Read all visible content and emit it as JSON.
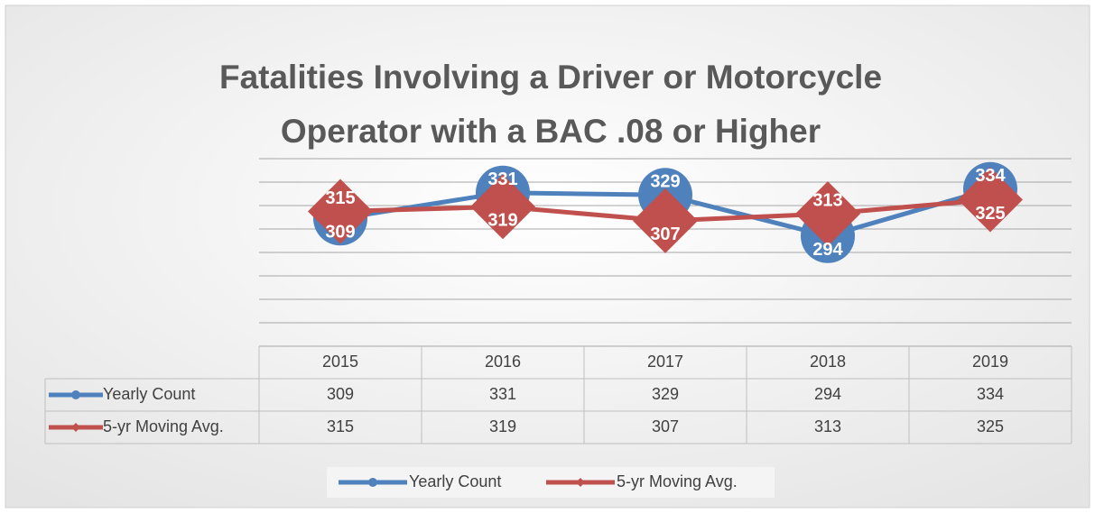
{
  "chart_data": {
    "type": "line",
    "title": "Fatalities Involving a Driver or Motorcycle Operator with a BAC .08 or Higher",
    "categories": [
      "2015",
      "2016",
      "2017",
      "2018",
      "2019"
    ],
    "series": [
      {
        "name": "Yearly Count",
        "color": "#4f81bd",
        "marker": "circle",
        "values": [
          309,
          331,
          329,
          294,
          334
        ]
      },
      {
        "name": "5-yr Moving Avg.",
        "color": "#c0504d",
        "marker": "diamond",
        "values": [
          315,
          319,
          307,
          313,
          325
        ]
      }
    ],
    "ylim": [
      200,
      360
    ],
    "yticks": [
      200,
      220,
      240,
      260,
      280,
      300,
      320,
      340,
      360
    ],
    "grid": true,
    "legend": "bottom"
  }
}
